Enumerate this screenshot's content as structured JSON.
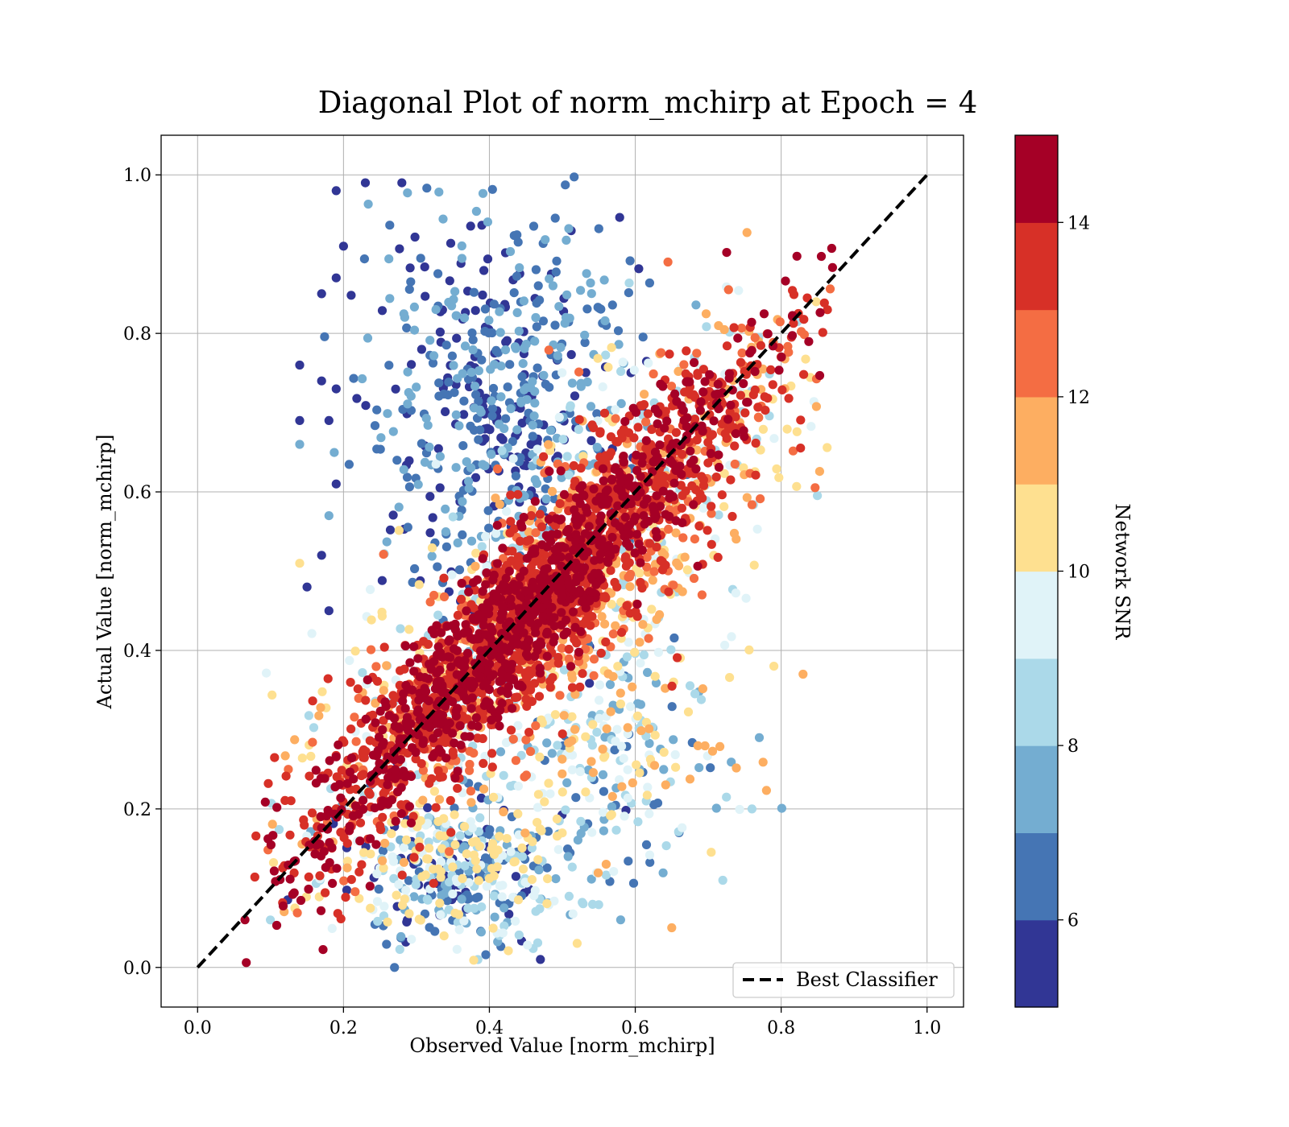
{
  "chart_data": {
    "type": "scatter",
    "title": "Diagonal Plot of norm_mchirp at Epoch = 4",
    "xlabel": "Observed Value [norm_mchirp]",
    "ylabel": "Actual Value [norm_mchirp]",
    "xlim": [
      -0.05,
      1.05
    ],
    "ylim": [
      -0.05,
      1.05
    ],
    "x_ticks": [
      "0.0",
      "0.2",
      "0.4",
      "0.6",
      "0.8",
      "1.0"
    ],
    "y_ticks": [
      "0.0",
      "0.2",
      "0.4",
      "0.6",
      "0.8",
      "1.0"
    ],
    "grid": true,
    "legend": {
      "position": "lower-right",
      "entries": [
        "Best Classifier"
      ]
    },
    "reference_line": {
      "name": "Best Classifier",
      "style": "dashed",
      "color": "#000000",
      "from": [
        0,
        0
      ],
      "to": [
        1,
        1
      ]
    },
    "colorbar": {
      "label": "Network SNR",
      "range": [
        5,
        15
      ],
      "ticks": [
        "6",
        "8",
        "10",
        "12",
        "14"
      ],
      "tick_values": [
        6,
        8,
        10,
        12,
        14
      ],
      "colors": [
        "#313695",
        "#4575b4",
        "#74add1",
        "#abd9e9",
        "#e0f3f8",
        "#fee090",
        "#fdae61",
        "#f46d43",
        "#d73027",
        "#a50026"
      ]
    },
    "point_clusters": [
      {
        "snr_range": [
          13,
          15
        ],
        "description": "high SNR, near diagonal",
        "center": [
          0.45,
          0.45
        ],
        "spread_along": 0.22,
        "spread_across": 0.035,
        "count": 1700
      },
      {
        "snr_range": [
          11,
          14
        ],
        "description": "mid-high SNR, band around diagonal",
        "center": [
          0.5,
          0.48
        ],
        "spread_along": 0.23,
        "spread_across": 0.06,
        "count": 900
      },
      {
        "snr_range": [
          8,
          11
        ],
        "description": "mid SNR, wider band",
        "center": [
          0.5,
          0.47
        ],
        "spread_along": 0.22,
        "spread_across": 0.09,
        "count": 500
      },
      {
        "snr_range": [
          5,
          8
        ],
        "description": "low SNR, upper-left cloud",
        "center": [
          0.42,
          0.72
        ],
        "spread_x": 0.09,
        "spread_y": 0.13,
        "count": 550
      },
      {
        "snr_range": [
          5,
          11
        ],
        "description": "low SNR, lower cloud",
        "center": [
          0.36,
          0.13
        ],
        "spread_x": 0.08,
        "spread_y": 0.05,
        "count": 420
      },
      {
        "snr_range": [
          6,
          12
        ],
        "description": "lower-right scatter",
        "center": [
          0.58,
          0.27
        ],
        "spread_x": 0.08,
        "spread_y": 0.07,
        "count": 200
      }
    ],
    "outlier_points": [
      {
        "x": 0.23,
        "y": 0.99,
        "snr": 5.5
      },
      {
        "x": 0.28,
        "y": 0.99,
        "snr": 5.5
      },
      {
        "x": 0.19,
        "y": 0.98,
        "snr": 5.5
      },
      {
        "x": 0.2,
        "y": 0.91,
        "snr": 5.5
      },
      {
        "x": 0.19,
        "y": 0.87,
        "snr": 5.5
      },
      {
        "x": 0.17,
        "y": 0.85,
        "snr": 5.5
      },
      {
        "x": 0.14,
        "y": 0.76,
        "snr": 5.5
      },
      {
        "x": 0.17,
        "y": 0.74,
        "snr": 5.5
      },
      {
        "x": 0.19,
        "y": 0.73,
        "snr": 5.5
      },
      {
        "x": 0.14,
        "y": 0.69,
        "snr": 5.5
      },
      {
        "x": 0.18,
        "y": 0.69,
        "snr": 5.5
      },
      {
        "x": 0.14,
        "y": 0.66,
        "snr": 7.5
      },
      {
        "x": 0.19,
        "y": 0.61,
        "snr": 5.5
      },
      {
        "x": 0.18,
        "y": 0.57,
        "snr": 7.0
      },
      {
        "x": 0.15,
        "y": 0.48,
        "snr": 5.5
      },
      {
        "x": 0.17,
        "y": 0.52,
        "snr": 5.5
      },
      {
        "x": 0.14,
        "y": 0.51,
        "snr": 10.5
      },
      {
        "x": 0.18,
        "y": 0.45,
        "snr": 5.5
      },
      {
        "x": 0.83,
        "y": 0.37,
        "snr": 11.5
      },
      {
        "x": 0.79,
        "y": 0.38,
        "snr": 10.5
      },
      {
        "x": 0.77,
        "y": 0.29,
        "snr": 7.5
      },
      {
        "x": 0.72,
        "y": 0.11,
        "snr": 8.5
      },
      {
        "x": 0.65,
        "y": 0.05,
        "snr": 11.5
      },
      {
        "x": 0.58,
        "y": 0.06,
        "snr": 7.5
      },
      {
        "x": 0.47,
        "y": 0.01,
        "snr": 5.5
      },
      {
        "x": 0.27,
        "y": 0.0,
        "snr": 6.5
      },
      {
        "x": 0.76,
        "y": 0.2,
        "snr": 8.5
      },
      {
        "x": 0.66,
        "y": 0.17,
        "snr": 6.5
      }
    ]
  }
}
